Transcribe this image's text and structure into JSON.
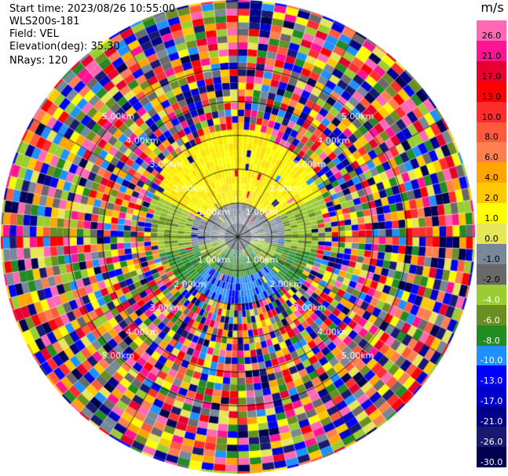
{
  "info": {
    "start_time": "Start time: 2023/08/26 10:55:00",
    "instrument": "WLS200s-181",
    "field": "Field: VEL",
    "elevation": "Elevation(deg): 35.30",
    "nrays": "NRays: 120"
  },
  "colorbar": {
    "unit": "m/s",
    "labels": [
      "26.0",
      "21.0",
      "17.0",
      "13.0",
      "10.0",
      "8.0",
      "6.0",
      "4.0",
      "2.0",
      "1.0",
      "0.0",
      "-1.0",
      "-2.0",
      "-4.0",
      "-6.0",
      "-8.0",
      "-10.0",
      "-13.0",
      "-17.0",
      "-21.0",
      "-26.0",
      "-30.0"
    ],
    "colors": [
      "#ff69b4",
      "#ff1493",
      "#e6002e",
      "#ff0000",
      "#ff2d2d",
      "#ff5a3c",
      "#ff7f50",
      "#ffa500",
      "#ffc800",
      "#ffff00",
      "#e6e65a",
      "#778899",
      "#696969",
      "#9acd32",
      "#6b8e23",
      "#228b22",
      "#1e90ff",
      "#0000ff",
      "#0000cd",
      "#00008b",
      "#191970",
      "#000050"
    ]
  },
  "chart_data": {
    "type": "heatmap",
    "projection": "polar (PPI scan)",
    "field": "VEL",
    "units": "m/s",
    "color_range": [
      -30.0,
      26.0
    ],
    "rays": 120,
    "range_ring_labels": [
      "1.00km",
      "2.00km",
      "3.00km",
      "4.00km",
      "5.00km"
    ],
    "range_rings_km": [
      1,
      2,
      3,
      4,
      5
    ],
    "max_range_km": 7,
    "spokes_deg": [
      0,
      30,
      60,
      90,
      120,
      150,
      180,
      210,
      240,
      270,
      300,
      330
    ],
    "pattern": {
      "near_field_north": "yellow (+1 to +2 m/s)",
      "near_field_center": "grey (about 0 m/s)",
      "near_field_south": "green to blue (-2 to -10 m/s)",
      "far_field": "noise, all colors"
    }
  }
}
